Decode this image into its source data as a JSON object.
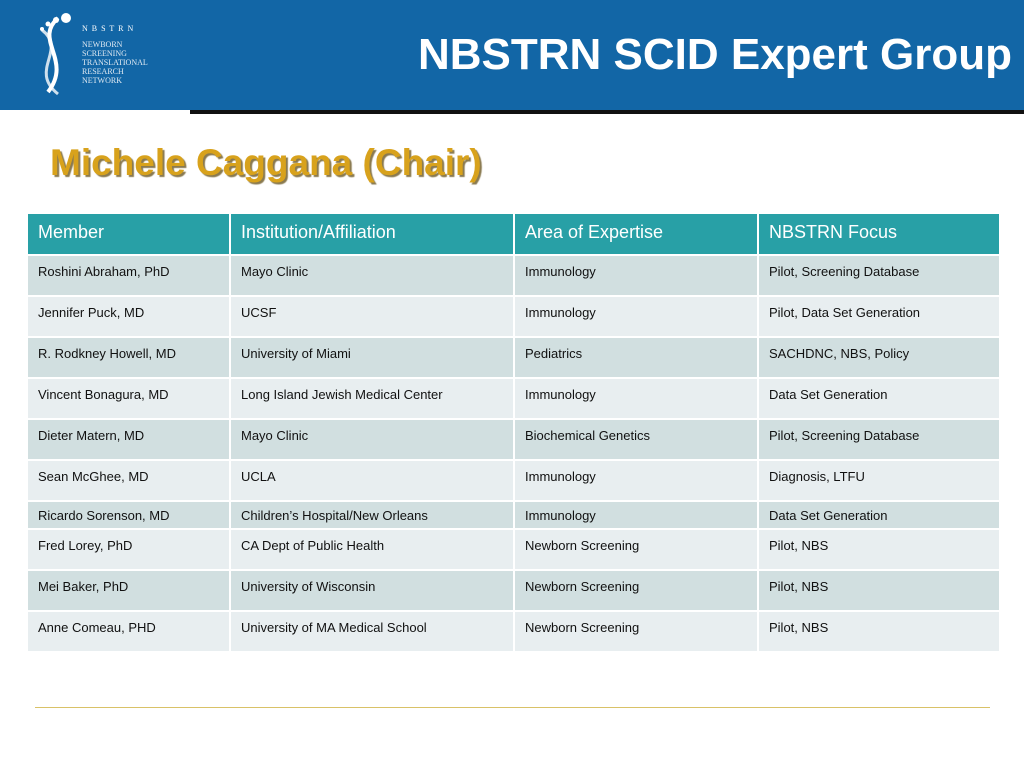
{
  "logo": {
    "acronym": "N B S T R N",
    "lines": [
      "NEWBORN",
      "SCREENING",
      "TRANSLATIONAL",
      "RESEARCH",
      "NETWORK"
    ]
  },
  "header": {
    "title": "NBSTRN SCID Expert Group"
  },
  "subtitle": "Michele Caggana (Chair)",
  "table": {
    "columns": [
      "Member",
      "Institution/Affiliation",
      "Area of Expertise",
      "NBSTRN Focus"
    ],
    "rows": [
      [
        "Roshini Abraham, PhD",
        "Mayo Clinic",
        "Immunology",
        "Pilot, Screening Database"
      ],
      [
        "Jennifer Puck, MD",
        "UCSF",
        "Immunology",
        "Pilot, Data Set Generation"
      ],
      [
        "R. Rodkney Howell, MD",
        "University of Miami",
        "Pediatrics",
        "SACHDNC, NBS, Policy"
      ],
      [
        "Vincent Bonagura, MD",
        "Long Island Jewish Medical Center",
        "Immunology",
        "Data Set Generation"
      ],
      [
        "Dieter Matern, MD",
        "Mayo Clinic",
        "Biochemical Genetics",
        "Pilot, Screening Database"
      ],
      [
        "Sean McGhee, MD",
        "UCLA",
        "Immunology",
        "Diagnosis, LTFU"
      ],
      [
        "Ricardo Sorenson, MD",
        "Children’s Hospital/New Orleans",
        "Immunology",
        "Data Set Generation"
      ],
      [
        "Fred Lorey, PhD",
        "CA Dept of Public Health",
        "Newborn Screening",
        "Pilot, NBS"
      ],
      [
        "Mei Baker, PhD",
        "University of Wisconsin",
        "Newborn Screening",
        "Pilot, NBS"
      ],
      [
        "Anne Comeau, PHD",
        "University of MA Medical School",
        "Newborn Screening",
        "Pilot, NBS"
      ]
    ]
  }
}
